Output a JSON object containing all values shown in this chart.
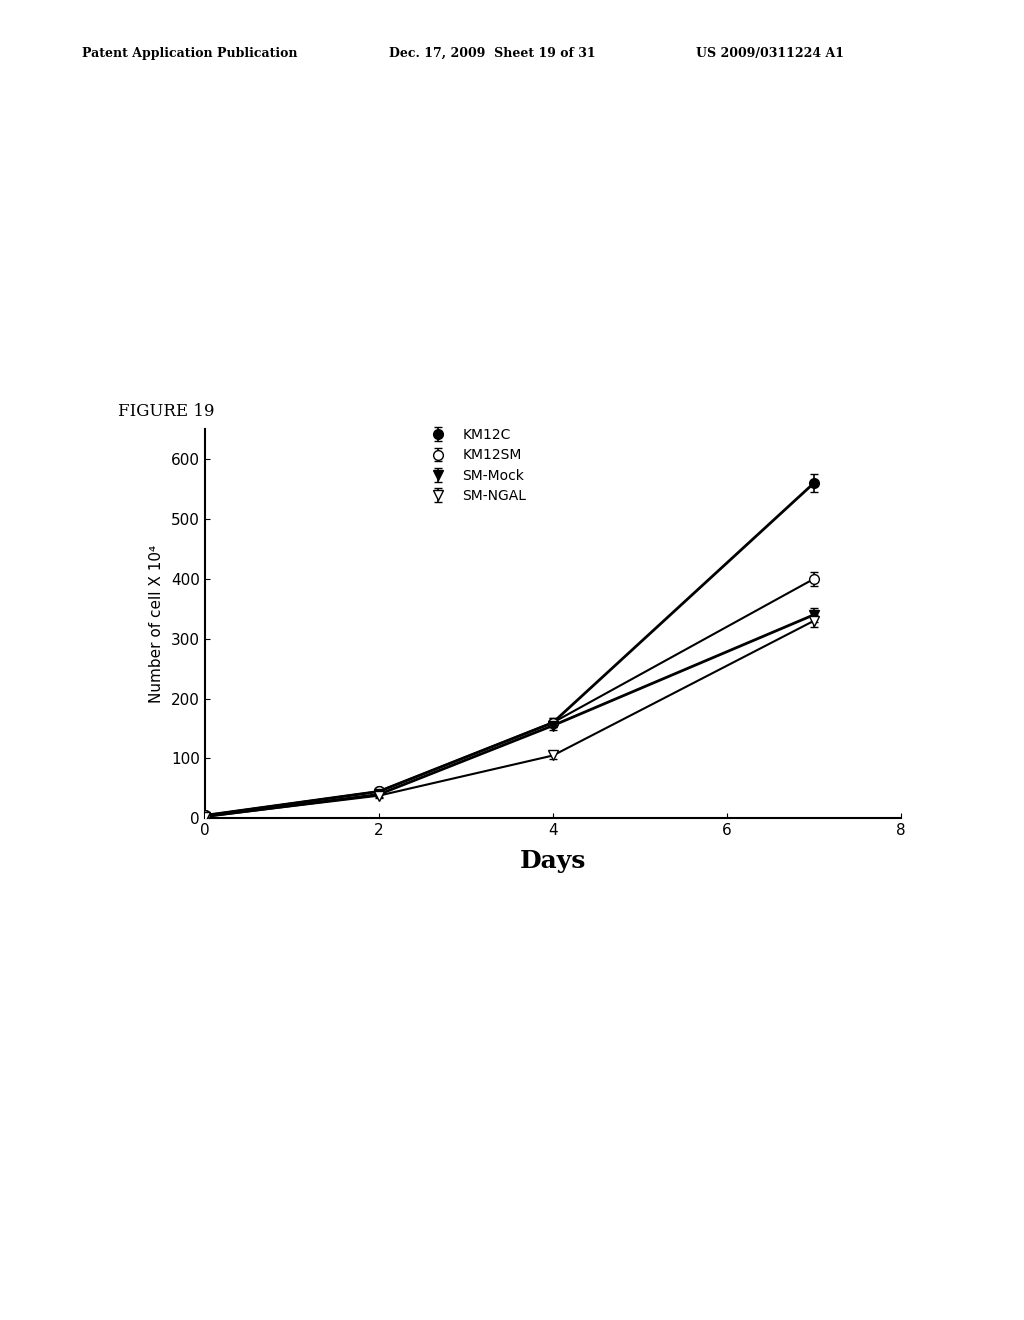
{
  "header_left": "Patent Application Publication",
  "header_mid": "Dec. 17, 2009  Sheet 19 of 31",
  "header_right": "US 2009/0311224 A1",
  "figure_label": "FIGURE 19",
  "xlabel": "Days",
  "ylabel": "Number of cell X 10⁴",
  "xlim": [
    0,
    8
  ],
  "ylim": [
    0,
    650
  ],
  "xticks": [
    0,
    2,
    4,
    6,
    8
  ],
  "yticks": [
    0,
    100,
    200,
    300,
    400,
    500,
    600
  ],
  "series": {
    "KM12C": {
      "x": [
        0,
        2,
        4,
        7
      ],
      "y": [
        5,
        45,
        160,
        560
      ],
      "yerr": [
        2,
        5,
        8,
        15
      ],
      "marker": "o",
      "mfc": "black",
      "mec": "black",
      "lw": 2.0
    },
    "KM12SM": {
      "x": [
        0,
        2,
        4,
        7
      ],
      "y": [
        5,
        45,
        160,
        400
      ],
      "yerr": [
        2,
        5,
        8,
        12
      ],
      "marker": "o",
      "mfc": "white",
      "mec": "black",
      "lw": 1.5
    },
    "SM-Mock": {
      "x": [
        0,
        2,
        4,
        7
      ],
      "y": [
        3,
        40,
        155,
        340
      ],
      "yerr": [
        2,
        4,
        7,
        12
      ],
      "marker": "v",
      "mfc": "black",
      "mec": "black",
      "lw": 2.0
    },
    "SM-NGAL": {
      "x": [
        0,
        2,
        4,
        7
      ],
      "y": [
        3,
        38,
        105,
        330
      ],
      "yerr": [
        2,
        4,
        6,
        10
      ],
      "marker": "v",
      "mfc": "white",
      "mec": "black",
      "lw": 1.5
    }
  },
  "background_color": "#ffffff"
}
